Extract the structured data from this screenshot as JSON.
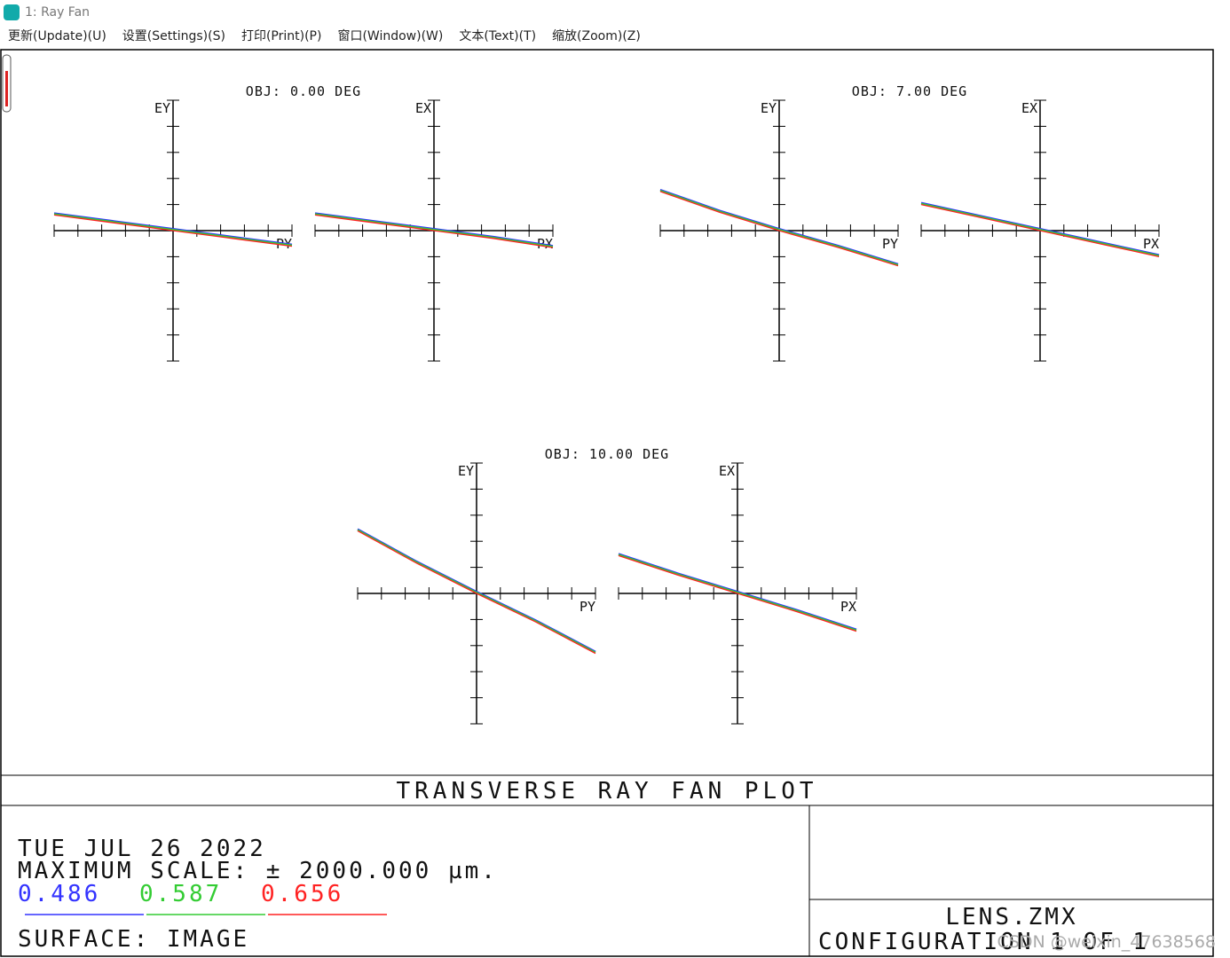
{
  "window": {
    "title": "1: Ray Fan"
  },
  "menu": [
    "更新(Update)(U)",
    "设置(Settings)(S)",
    "打印(Print)(P)",
    "窗口(Window)(W)",
    "文本(Text)(T)",
    "缩放(Zoom)(Z)"
  ],
  "chart_data": [
    {
      "type": "line",
      "title": "OBJ: 0.00 DEG",
      "ylabel": "EY",
      "xlabel": "PY",
      "x": [
        -1,
        -0.5,
        0,
        0.5,
        1
      ],
      "xlim": [
        -1,
        1
      ],
      "ylim": [
        -1,
        1
      ],
      "series": [
        {
          "color": "#3333ff",
          "values": [
            0.12,
            0.06,
            0,
            -0.06,
            -0.12
          ]
        },
        {
          "color": "#33cc33",
          "values": [
            0.12,
            0.06,
            0,
            -0.06,
            -0.12
          ]
        },
        {
          "color": "#ff2222",
          "values": [
            0.12,
            0.06,
            0,
            -0.06,
            -0.12
          ]
        }
      ]
    },
    {
      "type": "line",
      "ylabel": "EX",
      "xlabel": "PX",
      "x": [
        -1,
        -0.5,
        0,
        0.5,
        1
      ],
      "xlim": [
        -1,
        1
      ],
      "ylim": [
        -1,
        1
      ],
      "series": [
        {
          "color": "#3333ff",
          "values": [
            0.12,
            0.06,
            0,
            -0.06,
            -0.13
          ]
        },
        {
          "color": "#33cc33",
          "values": [
            0.12,
            0.06,
            0,
            -0.06,
            -0.13
          ]
        },
        {
          "color": "#ff2222",
          "values": [
            0.12,
            0.06,
            0,
            -0.06,
            -0.13
          ]
        }
      ]
    },
    {
      "type": "line",
      "title": "OBJ: 7.00 DEG",
      "ylabel": "EY",
      "xlabel": "PY",
      "x": [
        -1,
        -0.5,
        0,
        0.5,
        1
      ],
      "xlim": [
        -1,
        1
      ],
      "ylim": [
        -1,
        1
      ],
      "series": [
        {
          "color": "#3333ff",
          "values": [
            0.3,
            0.14,
            0,
            -0.13,
            -0.27
          ]
        },
        {
          "color": "#33cc33",
          "values": [
            0.3,
            0.14,
            0,
            -0.13,
            -0.27
          ]
        },
        {
          "color": "#ff2222",
          "values": [
            0.3,
            0.14,
            0,
            -0.13,
            -0.27
          ]
        }
      ]
    },
    {
      "type": "line",
      "ylabel": "EX",
      "xlabel": "PX",
      "x": [
        -1,
        -0.5,
        0,
        0.5,
        1
      ],
      "xlim": [
        -1,
        1
      ],
      "ylim": [
        -1,
        1
      ],
      "series": [
        {
          "color": "#3333ff",
          "values": [
            0.2,
            0.1,
            0,
            -0.1,
            -0.2
          ]
        },
        {
          "color": "#33cc33",
          "values": [
            0.2,
            0.1,
            0,
            -0.1,
            -0.2
          ]
        },
        {
          "color": "#ff2222",
          "values": [
            0.2,
            0.1,
            0,
            -0.1,
            -0.2
          ]
        }
      ]
    },
    {
      "type": "line",
      "title": "OBJ: 10.00 DEG",
      "ylabel": "EY",
      "xlabel": "PY",
      "x": [
        -1,
        -0.5,
        0,
        0.5,
        1
      ],
      "xlim": [
        -1,
        1
      ],
      "ylim": [
        -1,
        1
      ],
      "series": [
        {
          "color": "#3333ff",
          "values": [
            0.48,
            0.23,
            0,
            -0.22,
            -0.46
          ]
        },
        {
          "color": "#33cc33",
          "values": [
            0.48,
            0.23,
            0,
            -0.22,
            -0.46
          ]
        },
        {
          "color": "#ff2222",
          "values": [
            0.48,
            0.23,
            0,
            -0.22,
            -0.46
          ]
        }
      ]
    },
    {
      "type": "line",
      "ylabel": "EX",
      "xlabel": "PX",
      "x": [
        -1,
        -0.5,
        0,
        0.5,
        1
      ],
      "xlim": [
        -1,
        1
      ],
      "ylim": [
        -1,
        1
      ],
      "series": [
        {
          "color": "#3333ff",
          "values": [
            0.29,
            0.14,
            0,
            -0.14,
            -0.29
          ]
        },
        {
          "color": "#33cc33",
          "values": [
            0.29,
            0.14,
            0,
            -0.14,
            -0.29
          ]
        },
        {
          "color": "#ff2222",
          "values": [
            0.29,
            0.14,
            0,
            -0.14,
            -0.29
          ]
        }
      ]
    }
  ],
  "footer": {
    "title": "TRANSVERSE RAY FAN PLOT",
    "date": "TUE JUL 26 2022",
    "scale": "MAXIMUM SCALE: ± 2000.000 µm.",
    "wavelengths": [
      {
        "label": "0.486",
        "color": "#3333ff"
      },
      {
        "label": "0.587",
        "color": "#33cc33"
      },
      {
        "label": "0.656",
        "color": "#ff2222"
      }
    ],
    "surface": "SURFACE: IMAGE",
    "file": "LENS.ZMX",
    "config": "CONFIGURATION 1 OF 1",
    "watermark": "CSDN @weixin_47638568"
  }
}
